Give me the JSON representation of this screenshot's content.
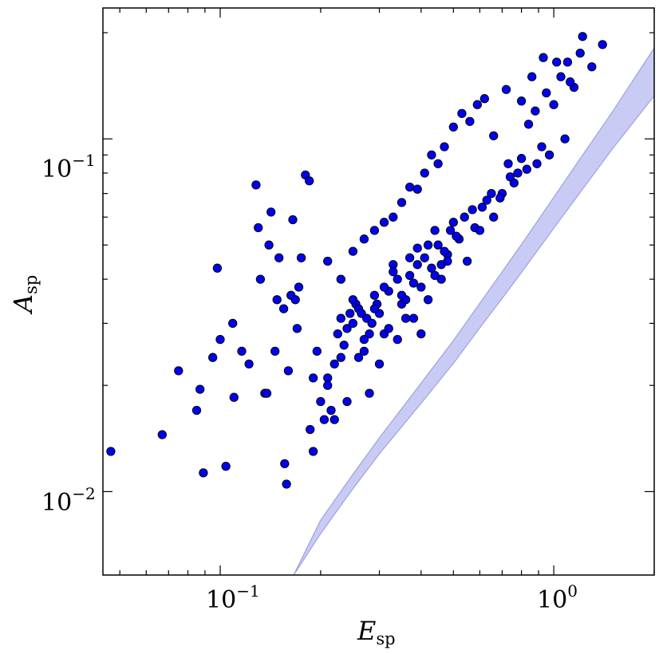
{
  "chart_data": {
    "type": "scatter",
    "title": "",
    "xlabel": {
      "main": "E",
      "sub": "sp"
    },
    "ylabel": {
      "main": "A",
      "sub": "sp"
    },
    "xscale": "log",
    "yscale": "log",
    "xlim": [
      0.0445,
      2.0
    ],
    "ylim": [
      0.0058,
      0.235
    ],
    "xticks": [
      {
        "base": "10",
        "exp": "−1",
        "value": 0.1
      },
      {
        "base": "10",
        "exp": "0",
        "value": 1.0
      }
    ],
    "yticks": [
      {
        "base": "10",
        "exp": "−2",
        "value": 0.01
      },
      {
        "base": "10",
        "exp": "−1",
        "value": 0.1
      }
    ],
    "grid": false,
    "colors": {
      "points": "#0000ee",
      "point_edge": "#000000",
      "band": "#c9cbf5",
      "band_edge": "#9ea3dd",
      "frame": "#000000"
    },
    "band": {
      "x": [
        0.166,
        0.2,
        0.25,
        0.3,
        0.4,
        0.5,
        0.6,
        0.7,
        0.8,
        1.0,
        1.2,
        1.5,
        2.0
      ],
      "lower": [
        0.0058,
        0.0076,
        0.0102,
        0.0128,
        0.0178,
        0.0231,
        0.0291,
        0.0353,
        0.0418,
        0.0558,
        0.0705,
        0.0938,
        0.1325
      ],
      "upper": [
        0.0058,
        0.0083,
        0.0112,
        0.0142,
        0.0203,
        0.0268,
        0.0342,
        0.042,
        0.0502,
        0.0683,
        0.0879,
        0.1195,
        0.181
      ]
    },
    "series": [
      {
        "x": [
          0.047,
          0.067,
          0.075,
          0.085,
          0.087,
          0.089,
          0.095,
          0.098,
          0.1,
          0.104,
          0.109,
          0.11,
          0.116,
          0.122,
          0.128,
          0.13,
          0.132,
          0.136,
          0.138,
          0.14,
          0.142,
          0.146,
          0.148,
          0.15,
          0.155,
          0.156,
          0.158,
          0.16,
          0.163,
          0.165,
          0.168,
          0.172,
          0.175,
          0.18,
          0.185,
          0.186,
          0.19,
          0.195,
          0.2,
          0.205,
          0.21,
          0.215,
          0.22,
          0.225,
          0.23,
          0.235,
          0.24,
          0.245,
          0.25,
          0.255,
          0.26,
          0.265,
          0.27,
          0.275,
          0.28,
          0.285,
          0.29,
          0.295,
          0.3,
          0.31,
          0.32,
          0.33,
          0.34,
          0.35,
          0.36,
          0.37,
          0.38,
          0.39,
          0.4,
          0.42,
          0.44,
          0.46,
          0.48,
          0.5,
          0.52,
          0.55,
          0.58,
          0.6,
          0.63,
          0.66,
          0.7,
          0.73,
          0.76,
          0.8,
          0.84,
          0.88,
          0.92,
          0.95,
          1.0,
          1.05,
          1.1,
          1.15,
          1.2,
          1.3,
          1.4,
          0.17,
          0.19,
          0.21,
          0.23,
          0.25,
          0.27,
          0.29,
          0.31,
          0.33,
          0.35,
          0.37,
          0.39,
          0.41,
          0.43,
          0.45,
          0.47,
          0.49,
          0.51,
          0.54,
          0.57,
          0.61,
          0.65,
          0.69,
          0.74,
          0.78,
          0.83,
          0.89,
          0.97,
          1.08,
          0.22,
          0.24,
          0.26,
          0.28,
          0.3,
          0.32,
          0.34,
          0.36,
          0.38,
          0.4,
          0.42,
          0.44,
          0.46,
          0.48,
          0.21,
          0.23,
          0.25,
          0.27,
          0.29,
          0.31,
          0.33,
          0.35,
          0.37,
          0.39,
          0.41,
          0.43,
          0.45,
          0.47,
          0.5,
          0.53,
          0.56,
          0.59,
          0.62,
          0.66,
          0.72,
          0.8,
          0.86,
          0.93,
          1.02,
          1.12,
          1.22
        ],
        "y": [
          0.013,
          0.0145,
          0.022,
          0.017,
          0.0195,
          0.0113,
          0.024,
          0.043,
          0.027,
          0.0118,
          0.03,
          0.0185,
          0.025,
          0.023,
          0.074,
          0.056,
          0.04,
          0.019,
          0.019,
          0.05,
          0.062,
          0.025,
          0.035,
          0.046,
          0.033,
          0.012,
          0.0105,
          0.022,
          0.036,
          0.059,
          0.035,
          0.038,
          0.046,
          0.079,
          0.076,
          0.015,
          0.021,
          0.025,
          0.018,
          0.016,
          0.021,
          0.017,
          0.023,
          0.028,
          0.031,
          0.026,
          0.029,
          0.032,
          0.03,
          0.034,
          0.033,
          0.032,
          0.025,
          0.031,
          0.028,
          0.03,
          0.036,
          0.034,
          0.032,
          0.028,
          0.037,
          0.044,
          0.04,
          0.034,
          0.035,
          0.046,
          0.031,
          0.044,
          0.038,
          0.05,
          0.055,
          0.04,
          0.047,
          0.058,
          0.052,
          0.045,
          0.056,
          0.055,
          0.067,
          0.06,
          0.07,
          0.085,
          0.075,
          0.088,
          0.11,
          0.12,
          0.095,
          0.135,
          0.125,
          0.15,
          0.165,
          0.14,
          0.175,
          0.16,
          0.185,
          0.029,
          0.013,
          0.02,
          0.024,
          0.035,
          0.027,
          0.033,
          0.038,
          0.042,
          0.036,
          0.041,
          0.049,
          0.046,
          0.043,
          0.05,
          0.048,
          0.055,
          0.053,
          0.06,
          0.063,
          0.064,
          0.07,
          0.068,
          0.078,
          0.08,
          0.082,
          0.085,
          0.09,
          0.1,
          0.016,
          0.018,
          0.024,
          0.019,
          0.023,
          0.029,
          0.027,
          0.031,
          0.039,
          0.028,
          0.035,
          0.041,
          0.044,
          0.045,
          0.045,
          0.04,
          0.048,
          0.052,
          0.055,
          0.058,
          0.06,
          0.066,
          0.073,
          0.072,
          0.08,
          0.09,
          0.085,
          0.095,
          0.108,
          0.118,
          0.112,
          0.125,
          0.13,
          0.102,
          0.138,
          0.128,
          0.15,
          0.17,
          0.165,
          0.145,
          0.195
        ]
      }
    ]
  }
}
